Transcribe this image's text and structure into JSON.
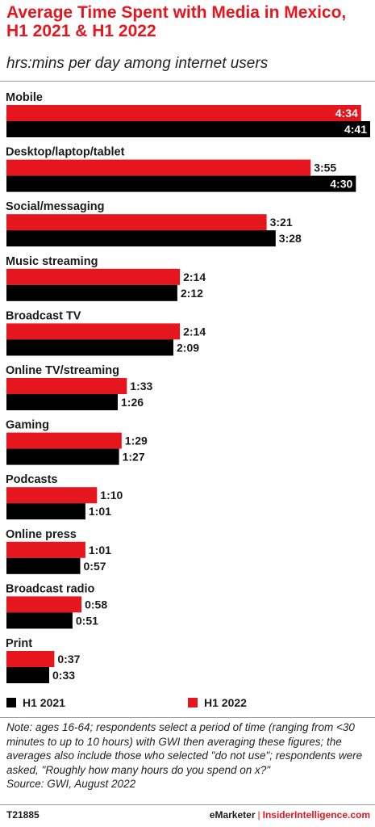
{
  "header": {
    "title": "Average Time Spent with Media in Mexico, H1 2021 & H1 2022",
    "subtitle": "hrs:mins per day among internet users"
  },
  "legend": {
    "h1_2021": "H1 2021",
    "h1_2022": "H1 2022"
  },
  "colors": {
    "h1_2022": "#e5161e",
    "h1_2021": "#000000"
  },
  "chart_data": {
    "type": "bar",
    "orientation": "horizontal",
    "unit": "hrs:mins",
    "categories": [
      "Mobile",
      "Desktop/laptop/tablet",
      "Social/messaging",
      "Music streaming",
      "Broadcast TV",
      "Online TV/streaming",
      "Gaming",
      "Podcasts",
      "Online press",
      "Broadcast radio",
      "Print"
    ],
    "series": [
      {
        "name": "H1 2022",
        "color": "#e5161e",
        "labels": [
          "4:34",
          "3:55",
          "3:21",
          "2:14",
          "2:14",
          "1:33",
          "1:29",
          "1:10",
          "1:01",
          "0:58",
          "0:37"
        ],
        "values": [
          274,
          235,
          201,
          134,
          134,
          93,
          89,
          70,
          61,
          58,
          37
        ]
      },
      {
        "name": "H1 2021",
        "color": "#000000",
        "labels": [
          "4:41",
          "4:30",
          "3:28",
          "2:12",
          "2:09",
          "1:26",
          "1:27",
          "1:01",
          "0:57",
          "0:51",
          "0:33"
        ],
        "values": [
          281,
          270,
          208,
          132,
          129,
          86,
          87,
          61,
          57,
          51,
          33
        ]
      }
    ],
    "legend_position": "bottom-left",
    "grid": false
  },
  "footer": {
    "note": "Note: ages 16-64; respondents select a period of time (ranging from <30 minutes to up to 10 hours) with GWI then averaging these figures; the averages also include those who selected \"do not use\"; respondents were asked, \"Roughly how many hours do you spend on x?\"",
    "source": "Source:  GWI, August 2022",
    "chart_id": "T21885",
    "brand_emarketer": "eMarketer",
    "brand_separator": "|",
    "brand_insider": "InsiderIntelligence.com"
  }
}
